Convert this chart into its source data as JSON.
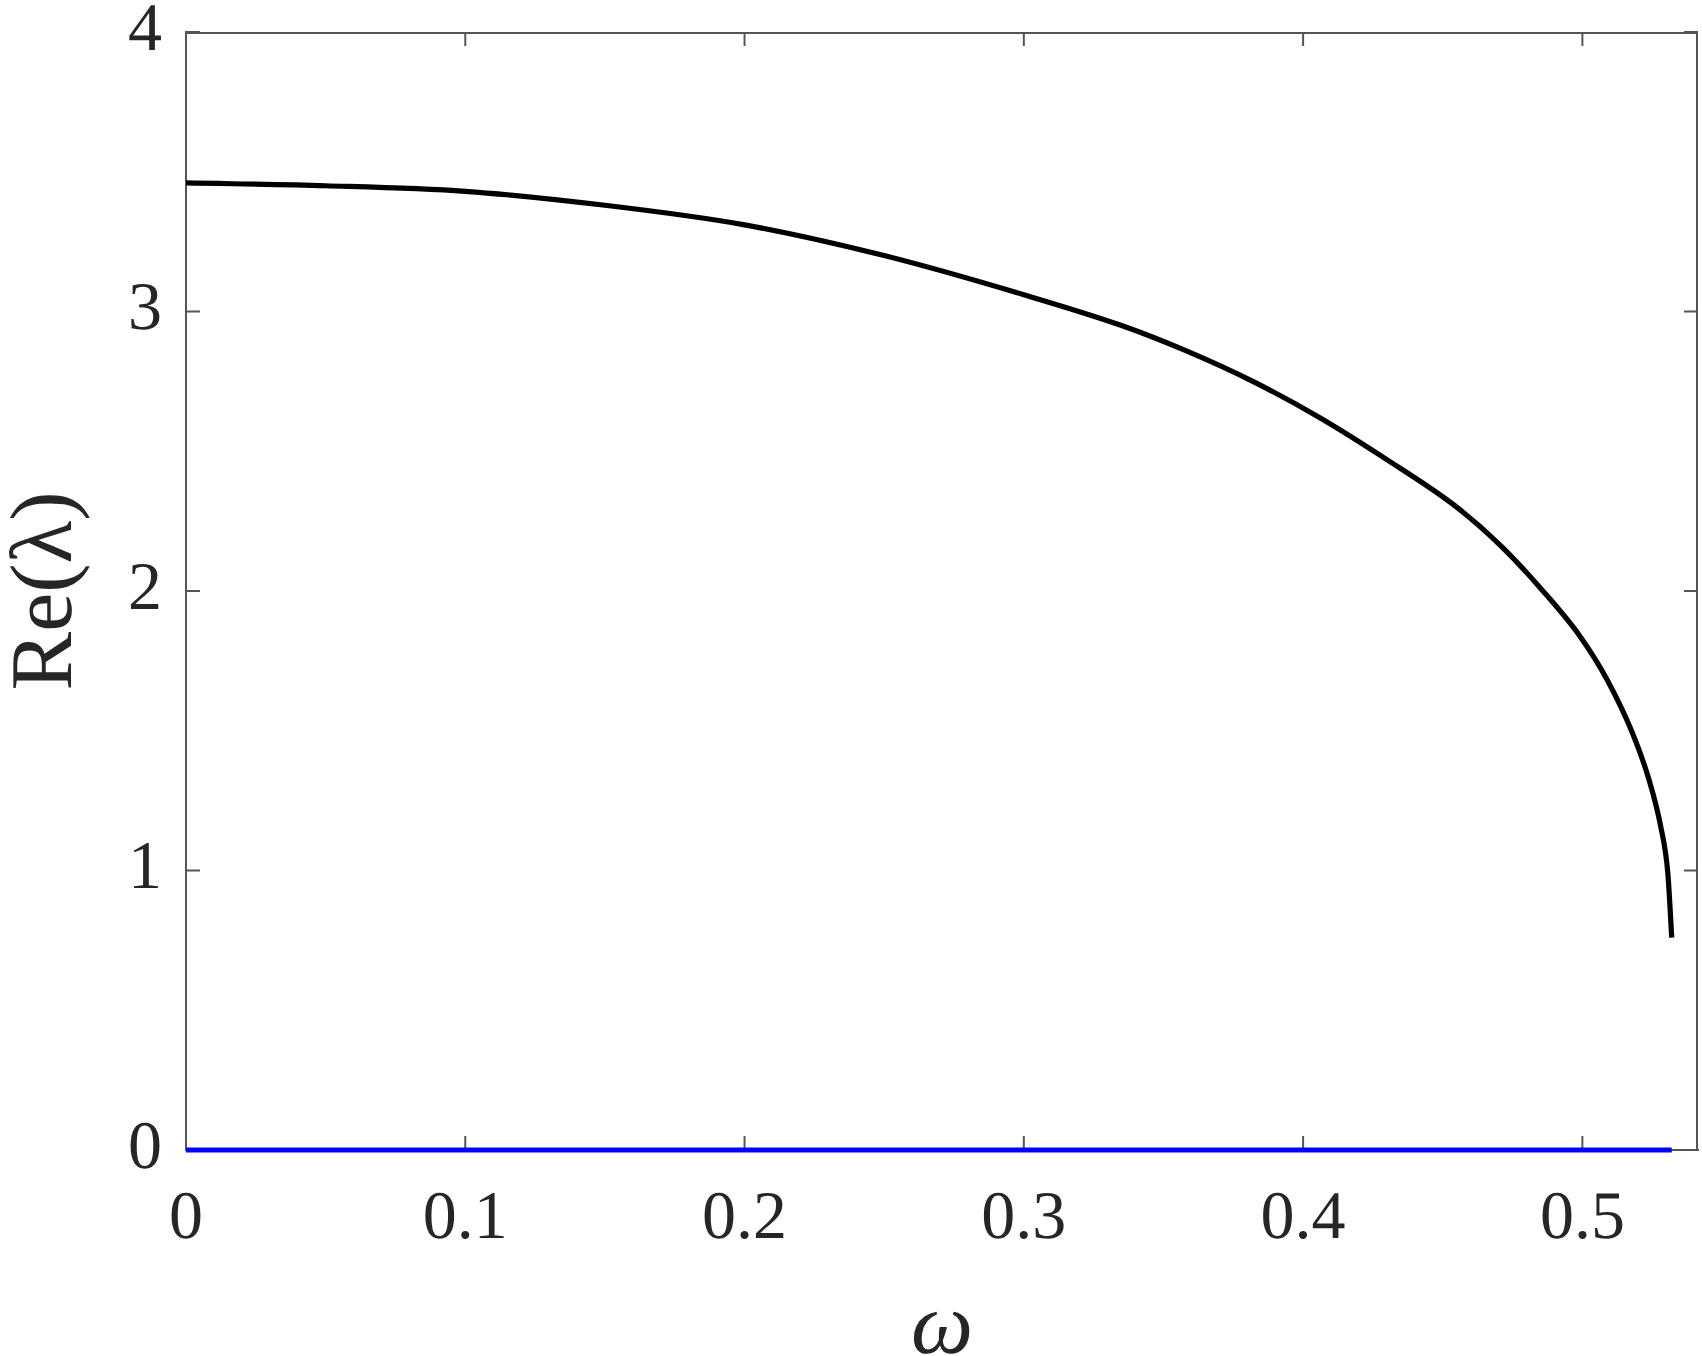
{
  "chart_data": {
    "type": "line",
    "xlabel": "ω",
    "ylabel": "Re(λ)",
    "xlim": [
      0,
      0.5414
    ],
    "xticks": [
      0,
      0.1,
      0.2,
      0.3,
      0.4,
      0.5
    ],
    "ylim": [
      0,
      4
    ],
    "yticks": [
      0,
      1,
      2,
      3,
      4
    ],
    "series": [
      {
        "color": "#000000",
        "x": [
          0,
          0.05,
          0.1,
          0.15,
          0.2,
          0.25,
          0.3,
          0.335,
          0.358,
          0.382,
          0.406,
          0.43,
          0.455,
          0.471,
          0.485,
          0.499,
          0.509,
          0.518,
          0.524,
          0.528,
          0.5306,
          0.532
        ],
        "values": [
          3.46,
          3.45,
          3.43,
          3.38,
          3.31,
          3.2,
          3.06,
          2.95,
          2.86,
          2.75,
          2.62,
          2.47,
          2.3,
          2.16,
          2.01,
          1.84,
          1.68,
          1.49,
          1.32,
          1.16,
          0.99,
          0.76
        ]
      },
      {
        "color": "#0000ff",
        "x": [
          0,
          0.532
        ],
        "values": [
          0,
          0
        ]
      }
    ]
  }
}
